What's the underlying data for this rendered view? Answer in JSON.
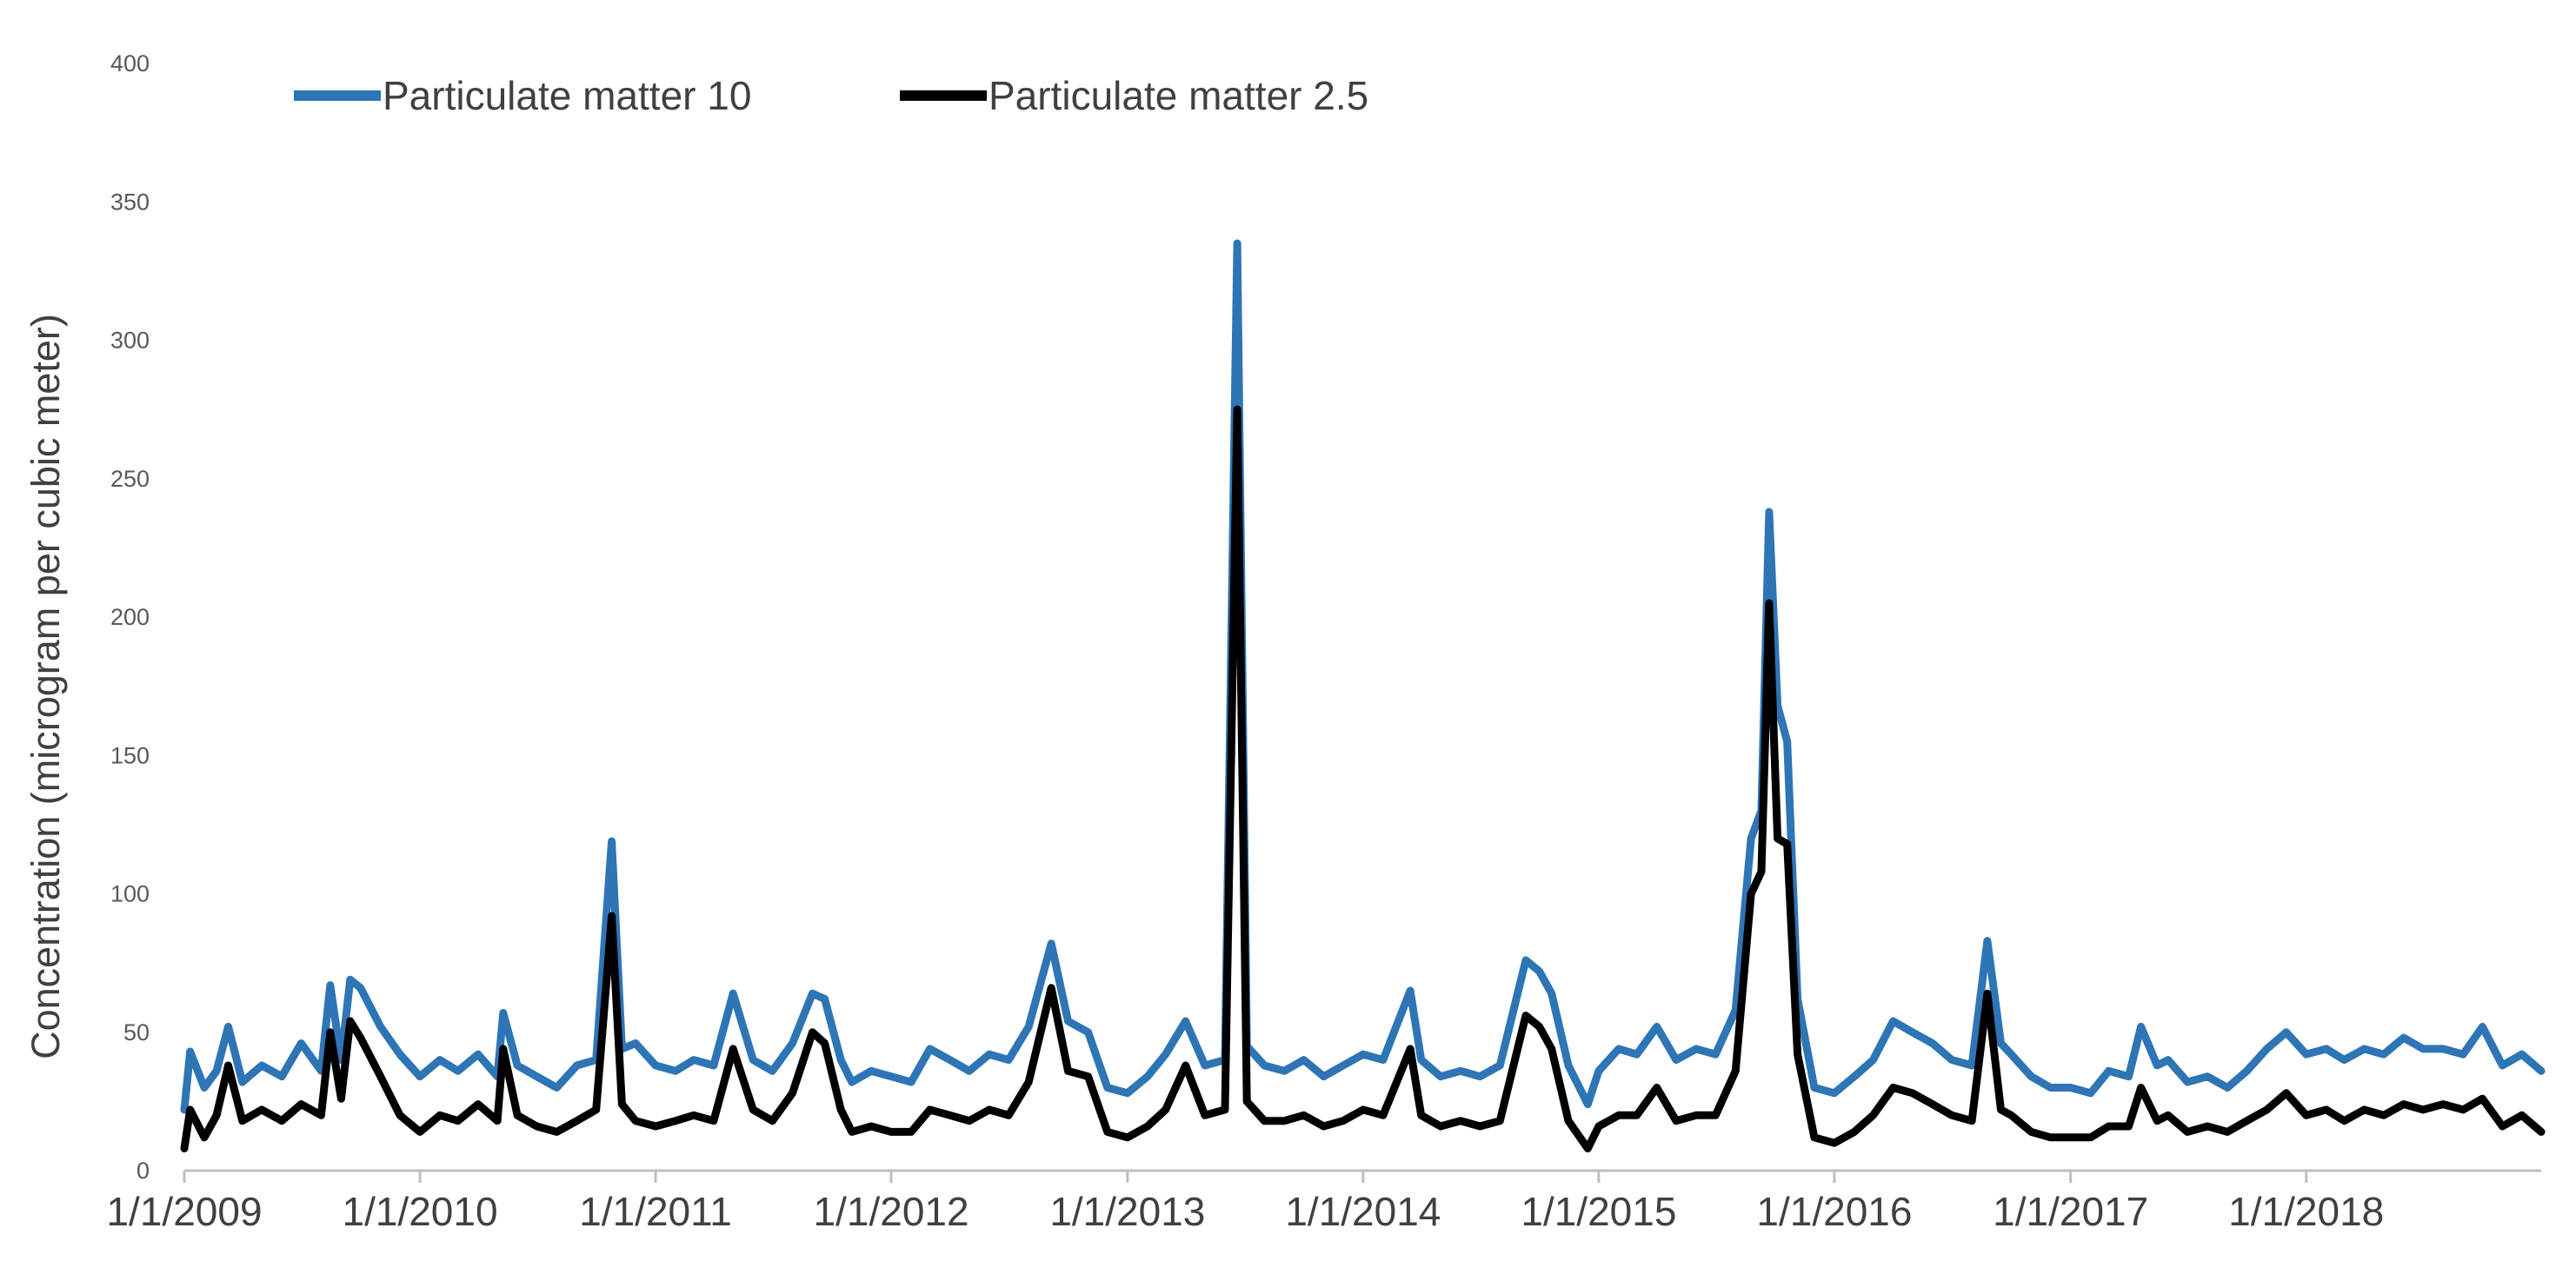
{
  "chart_data": {
    "type": "line",
    "title": "",
    "xlabel": "",
    "ylabel": "Concentration  (microgram per cubic meter)",
    "x_range": [
      "2009-01-01",
      "2018-12-31"
    ],
    "ylim": [
      0,
      400
    ],
    "y_ticks": [
      0,
      50,
      100,
      150,
      200,
      250,
      300,
      350,
      400
    ],
    "x_ticks": [
      "1/1/2009",
      "1/1/2010",
      "1/1/2011",
      "1/1/2012",
      "1/1/2013",
      "1/1/2014",
      "1/1/2015",
      "1/1/2016",
      "1/1/2017",
      "1/1/2018"
    ],
    "grid": false,
    "legend_position": "top",
    "series": [
      {
        "name": "Particulate matter 10",
        "color": "#2E75B6",
        "points": [
          [
            "2009-01-01",
            22
          ],
          [
            "2009-01-10",
            43
          ],
          [
            "2009-02-01",
            30
          ],
          [
            "2009-02-20",
            36
          ],
          [
            "2009-03-10",
            52
          ],
          [
            "2009-04-01",
            32
          ],
          [
            "2009-05-01",
            38
          ],
          [
            "2009-06-01",
            34
          ],
          [
            "2009-07-01",
            46
          ],
          [
            "2009-08-01",
            36
          ],
          [
            "2009-08-15",
            67
          ],
          [
            "2009-09-01",
            40
          ],
          [
            "2009-09-15",
            69
          ],
          [
            "2009-10-01",
            66
          ],
          [
            "2009-11-01",
            52
          ],
          [
            "2009-12-01",
            42
          ],
          [
            "2010-01-01",
            34
          ],
          [
            "2010-02-01",
            40
          ],
          [
            "2010-03-01",
            36
          ],
          [
            "2010-04-01",
            42
          ],
          [
            "2010-05-01",
            34
          ],
          [
            "2010-05-10",
            57
          ],
          [
            "2010-06-01",
            38
          ],
          [
            "2010-07-01",
            34
          ],
          [
            "2010-08-01",
            30
          ],
          [
            "2010-09-01",
            38
          ],
          [
            "2010-10-01",
            40
          ],
          [
            "2010-10-25",
            119
          ],
          [
            "2010-11-10",
            44
          ],
          [
            "2010-12-01",
            46
          ],
          [
            "2011-01-01",
            38
          ],
          [
            "2011-02-01",
            36
          ],
          [
            "2011-03-01",
            40
          ],
          [
            "2011-04-01",
            38
          ],
          [
            "2011-05-01",
            64
          ],
          [
            "2011-06-01",
            40
          ],
          [
            "2011-07-01",
            36
          ],
          [
            "2011-08-01",
            46
          ],
          [
            "2011-09-01",
            64
          ],
          [
            "2011-09-20",
            62
          ],
          [
            "2011-10-15",
            40
          ],
          [
            "2011-11-01",
            32
          ],
          [
            "2011-12-01",
            36
          ],
          [
            "2012-01-01",
            34
          ],
          [
            "2012-02-01",
            32
          ],
          [
            "2012-03-01",
            44
          ],
          [
            "2012-04-01",
            40
          ],
          [
            "2012-05-01",
            36
          ],
          [
            "2012-06-01",
            42
          ],
          [
            "2012-07-01",
            40
          ],
          [
            "2012-08-01",
            52
          ],
          [
            "2012-09-05",
            82
          ],
          [
            "2012-10-01",
            54
          ],
          [
            "2012-11-01",
            50
          ],
          [
            "2012-12-01",
            30
          ],
          [
            "2013-01-01",
            28
          ],
          [
            "2013-02-01",
            34
          ],
          [
            "2013-03-01",
            42
          ],
          [
            "2013-04-01",
            54
          ],
          [
            "2013-05-01",
            38
          ],
          [
            "2013-06-01",
            40
          ],
          [
            "2013-06-20",
            335
          ],
          [
            "2013-07-05",
            45
          ],
          [
            "2013-08-01",
            38
          ],
          [
            "2013-09-01",
            36
          ],
          [
            "2013-10-01",
            40
          ],
          [
            "2013-11-01",
            34
          ],
          [
            "2013-12-01",
            38
          ],
          [
            "2014-01-01",
            42
          ],
          [
            "2014-02-01",
            40
          ],
          [
            "2014-03-15",
            65
          ],
          [
            "2014-04-01",
            40
          ],
          [
            "2014-05-01",
            34
          ],
          [
            "2014-06-01",
            36
          ],
          [
            "2014-07-01",
            34
          ],
          [
            "2014-08-01",
            38
          ],
          [
            "2014-09-10",
            76
          ],
          [
            "2014-10-01",
            72
          ],
          [
            "2014-10-20",
            64
          ],
          [
            "2014-11-15",
            38
          ],
          [
            "2014-12-15",
            24
          ],
          [
            "2015-01-01",
            36
          ],
          [
            "2015-02-01",
            44
          ],
          [
            "2015-03-01",
            42
          ],
          [
            "2015-04-01",
            52
          ],
          [
            "2015-05-01",
            40
          ],
          [
            "2015-06-01",
            44
          ],
          [
            "2015-07-01",
            42
          ],
          [
            "2015-08-01",
            58
          ],
          [
            "2015-08-25",
            120
          ],
          [
            "2015-09-10",
            130
          ],
          [
            "2015-09-22",
            238
          ],
          [
            "2015-10-05",
            168
          ],
          [
            "2015-10-20",
            155
          ],
          [
            "2015-11-05",
            62
          ],
          [
            "2015-12-01",
            30
          ],
          [
            "2016-01-01",
            28
          ],
          [
            "2016-02-01",
            34
          ],
          [
            "2016-03-01",
            40
          ],
          [
            "2016-04-01",
            54
          ],
          [
            "2016-05-01",
            50
          ],
          [
            "2016-06-01",
            46
          ],
          [
            "2016-07-01",
            40
          ],
          [
            "2016-08-01",
            38
          ],
          [
            "2016-08-25",
            83
          ],
          [
            "2016-09-15",
            46
          ],
          [
            "2016-10-01",
            42
          ],
          [
            "2016-11-01",
            34
          ],
          [
            "2016-12-01",
            30
          ],
          [
            "2017-01-01",
            30
          ],
          [
            "2017-02-01",
            28
          ],
          [
            "2017-03-01",
            36
          ],
          [
            "2017-04-01",
            34
          ],
          [
            "2017-04-20",
            52
          ],
          [
            "2017-05-15",
            38
          ],
          [
            "2017-06-01",
            40
          ],
          [
            "2017-07-01",
            32
          ],
          [
            "2017-08-01",
            34
          ],
          [
            "2017-09-01",
            30
          ],
          [
            "2017-10-01",
            36
          ],
          [
            "2017-11-01",
            44
          ],
          [
            "2017-12-01",
            50
          ],
          [
            "2018-01-01",
            42
          ],
          [
            "2018-02-01",
            44
          ],
          [
            "2018-03-01",
            40
          ],
          [
            "2018-04-01",
            44
          ],
          [
            "2018-05-01",
            42
          ],
          [
            "2018-06-01",
            48
          ],
          [
            "2018-07-01",
            44
          ],
          [
            "2018-08-01",
            44
          ],
          [
            "2018-09-01",
            42
          ],
          [
            "2018-10-01",
            52
          ],
          [
            "2018-11-01",
            38
          ],
          [
            "2018-12-01",
            42
          ],
          [
            "2018-12-31",
            36
          ]
        ]
      },
      {
        "name": "Particulate matter 2.5",
        "color": "#000000",
        "points": [
          [
            "2009-01-01",
            8
          ],
          [
            "2009-01-10",
            22
          ],
          [
            "2009-02-01",
            12
          ],
          [
            "2009-02-20",
            20
          ],
          [
            "2009-03-10",
            38
          ],
          [
            "2009-04-01",
            18
          ],
          [
            "2009-05-01",
            22
          ],
          [
            "2009-06-01",
            18
          ],
          [
            "2009-07-01",
            24
          ],
          [
            "2009-08-01",
            20
          ],
          [
            "2009-08-15",
            50
          ],
          [
            "2009-09-01",
            26
          ],
          [
            "2009-09-15",
            54
          ],
          [
            "2009-10-01",
            48
          ],
          [
            "2009-11-01",
            34
          ],
          [
            "2009-12-01",
            20
          ],
          [
            "2010-01-01",
            14
          ],
          [
            "2010-02-01",
            20
          ],
          [
            "2010-03-01",
            18
          ],
          [
            "2010-04-01",
            24
          ],
          [
            "2010-05-01",
            18
          ],
          [
            "2010-05-10",
            44
          ],
          [
            "2010-06-01",
            20
          ],
          [
            "2010-07-01",
            16
          ],
          [
            "2010-08-01",
            14
          ],
          [
            "2010-09-01",
            18
          ],
          [
            "2010-10-01",
            22
          ],
          [
            "2010-10-25",
            92
          ],
          [
            "2010-11-10",
            24
          ],
          [
            "2010-12-01",
            18
          ],
          [
            "2011-01-01",
            16
          ],
          [
            "2011-02-01",
            18
          ],
          [
            "2011-03-01",
            20
          ],
          [
            "2011-04-01",
            18
          ],
          [
            "2011-05-01",
            44
          ],
          [
            "2011-06-01",
            22
          ],
          [
            "2011-07-01",
            18
          ],
          [
            "2011-08-01",
            28
          ],
          [
            "2011-09-01",
            50
          ],
          [
            "2011-09-20",
            46
          ],
          [
            "2011-10-15",
            22
          ],
          [
            "2011-11-01",
            14
          ],
          [
            "2011-12-01",
            16
          ],
          [
            "2012-01-01",
            14
          ],
          [
            "2012-02-01",
            14
          ],
          [
            "2012-03-01",
            22
          ],
          [
            "2012-04-01",
            20
          ],
          [
            "2012-05-01",
            18
          ],
          [
            "2012-06-01",
            22
          ],
          [
            "2012-07-01",
            20
          ],
          [
            "2012-08-01",
            32
          ],
          [
            "2012-09-05",
            66
          ],
          [
            "2012-10-01",
            36
          ],
          [
            "2012-11-01",
            34
          ],
          [
            "2012-12-01",
            14
          ],
          [
            "2013-01-01",
            12
          ],
          [
            "2013-02-01",
            16
          ],
          [
            "2013-03-01",
            22
          ],
          [
            "2013-04-01",
            38
          ],
          [
            "2013-05-01",
            20
          ],
          [
            "2013-06-01",
            22
          ],
          [
            "2013-06-20",
            275
          ],
          [
            "2013-07-05",
            25
          ],
          [
            "2013-08-01",
            18
          ],
          [
            "2013-09-01",
            18
          ],
          [
            "2013-10-01",
            20
          ],
          [
            "2013-11-01",
            16
          ],
          [
            "2013-12-01",
            18
          ],
          [
            "2014-01-01",
            22
          ],
          [
            "2014-02-01",
            20
          ],
          [
            "2014-03-15",
            44
          ],
          [
            "2014-04-01",
            20
          ],
          [
            "2014-05-01",
            16
          ],
          [
            "2014-06-01",
            18
          ],
          [
            "2014-07-01",
            16
          ],
          [
            "2014-08-01",
            18
          ],
          [
            "2014-09-10",
            56
          ],
          [
            "2014-10-01",
            52
          ],
          [
            "2014-10-20",
            44
          ],
          [
            "2014-11-15",
            18
          ],
          [
            "2014-12-15",
            8
          ],
          [
            "2015-01-01",
            16
          ],
          [
            "2015-02-01",
            20
          ],
          [
            "2015-03-01",
            20
          ],
          [
            "2015-04-01",
            30
          ],
          [
            "2015-05-01",
            18
          ],
          [
            "2015-06-01",
            20
          ],
          [
            "2015-07-01",
            20
          ],
          [
            "2015-08-01",
            36
          ],
          [
            "2015-08-25",
            100
          ],
          [
            "2015-09-10",
            108
          ],
          [
            "2015-09-22",
            205
          ],
          [
            "2015-10-05",
            120
          ],
          [
            "2015-10-20",
            118
          ],
          [
            "2015-11-05",
            42
          ],
          [
            "2015-12-01",
            12
          ],
          [
            "2016-01-01",
            10
          ],
          [
            "2016-02-01",
            14
          ],
          [
            "2016-03-01",
            20
          ],
          [
            "2016-04-01",
            30
          ],
          [
            "2016-05-01",
            28
          ],
          [
            "2016-06-01",
            24
          ],
          [
            "2016-07-01",
            20
          ],
          [
            "2016-08-01",
            18
          ],
          [
            "2016-08-25",
            64
          ],
          [
            "2016-09-15",
            22
          ],
          [
            "2016-10-01",
            20
          ],
          [
            "2016-11-01",
            14
          ],
          [
            "2016-12-01",
            12
          ],
          [
            "2017-01-01",
            12
          ],
          [
            "2017-02-01",
            12
          ],
          [
            "2017-03-01",
            16
          ],
          [
            "2017-04-01",
            16
          ],
          [
            "2017-04-20",
            30
          ],
          [
            "2017-05-15",
            18
          ],
          [
            "2017-06-01",
            20
          ],
          [
            "2017-07-01",
            14
          ],
          [
            "2017-08-01",
            16
          ],
          [
            "2017-09-01",
            14
          ],
          [
            "2017-10-01",
            18
          ],
          [
            "2017-11-01",
            22
          ],
          [
            "2017-12-01",
            28
          ],
          [
            "2018-01-01",
            20
          ],
          [
            "2018-02-01",
            22
          ],
          [
            "2018-03-01",
            18
          ],
          [
            "2018-04-01",
            22
          ],
          [
            "2018-05-01",
            20
          ],
          [
            "2018-06-01",
            24
          ],
          [
            "2018-07-01",
            22
          ],
          [
            "2018-08-01",
            24
          ],
          [
            "2018-09-01",
            22
          ],
          [
            "2018-10-01",
            26
          ],
          [
            "2018-11-01",
            16
          ],
          [
            "2018-12-01",
            20
          ],
          [
            "2018-12-31",
            14
          ]
        ]
      }
    ]
  }
}
